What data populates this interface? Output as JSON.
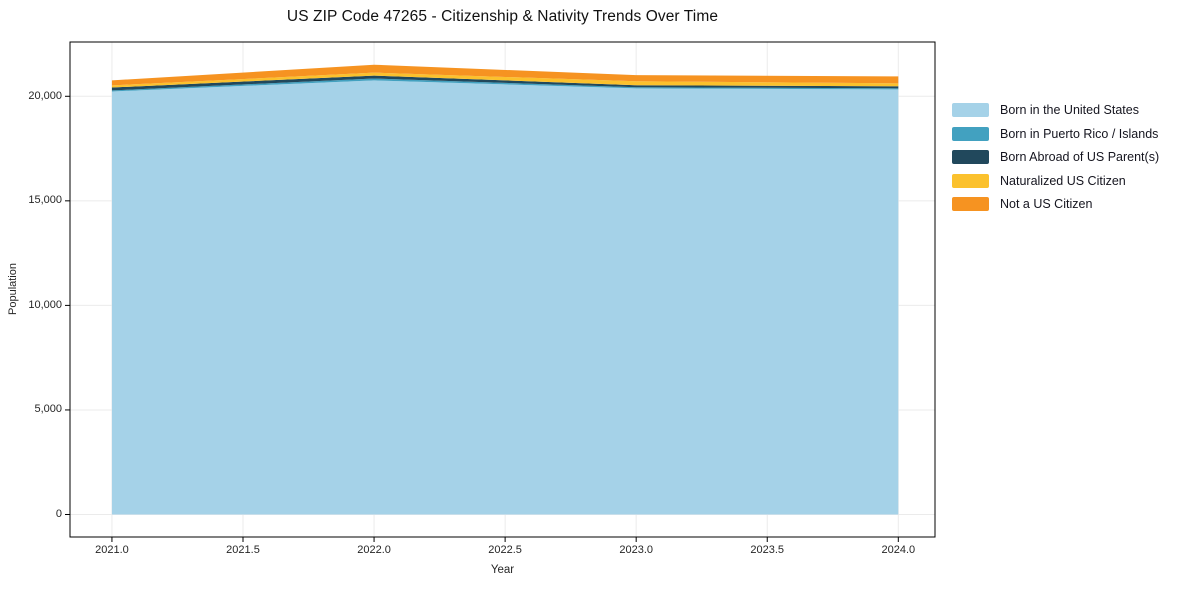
{
  "chart_data": {
    "type": "area",
    "stacked": true,
    "title": "US ZIP Code 47265 - Citizenship & Nativity Trends Over Time",
    "xlabel": "Year",
    "ylabel": "Population",
    "x": [
      2021,
      2022,
      2023,
      2024
    ],
    "series": [
      {
        "name": "Born in the United States",
        "color": "#a5d2e8",
        "values": [
          20230,
          20760,
          20380,
          20330
        ]
      },
      {
        "name": "Born in Puerto Rico / Islands",
        "color": "#42a1c0",
        "values": [
          50,
          90,
          50,
          50
        ]
      },
      {
        "name": "Born Abroad of US Parent(s)",
        "color": "#21485c",
        "values": [
          140,
          140,
          100,
          100
        ]
      },
      {
        "name": "Naturalized US Citizen",
        "color": "#fbc12d",
        "values": [
          100,
          140,
          190,
          140
        ]
      },
      {
        "name": "Not a US Citizen",
        "color": "#f69321",
        "values": [
          240,
          380,
          290,
          330
        ]
      }
    ],
    "xlim": [
      2020.84,
      2024.14
    ],
    "ylim": [
      -1076,
      22596
    ],
    "x_ticks": [
      2021.0,
      2021.5,
      2022.0,
      2022.5,
      2023.0,
      2023.5,
      2024.0
    ],
    "x_tick_labels": [
      "2021.0",
      "2021.5",
      "2022.0",
      "2022.5",
      "2023.0",
      "2023.5",
      "2024.0"
    ],
    "y_ticks": [
      0,
      5000,
      10000,
      15000,
      20000
    ],
    "y_tick_labels": [
      "0",
      "5,000",
      "10,000",
      "15,000",
      "20,000"
    ],
    "grid": true,
    "legend_position": "right-outside",
    "colors": {
      "frame": "#000000",
      "gridline": "#ebebeb",
      "tick": "#000000",
      "background": "#ffffff"
    }
  }
}
